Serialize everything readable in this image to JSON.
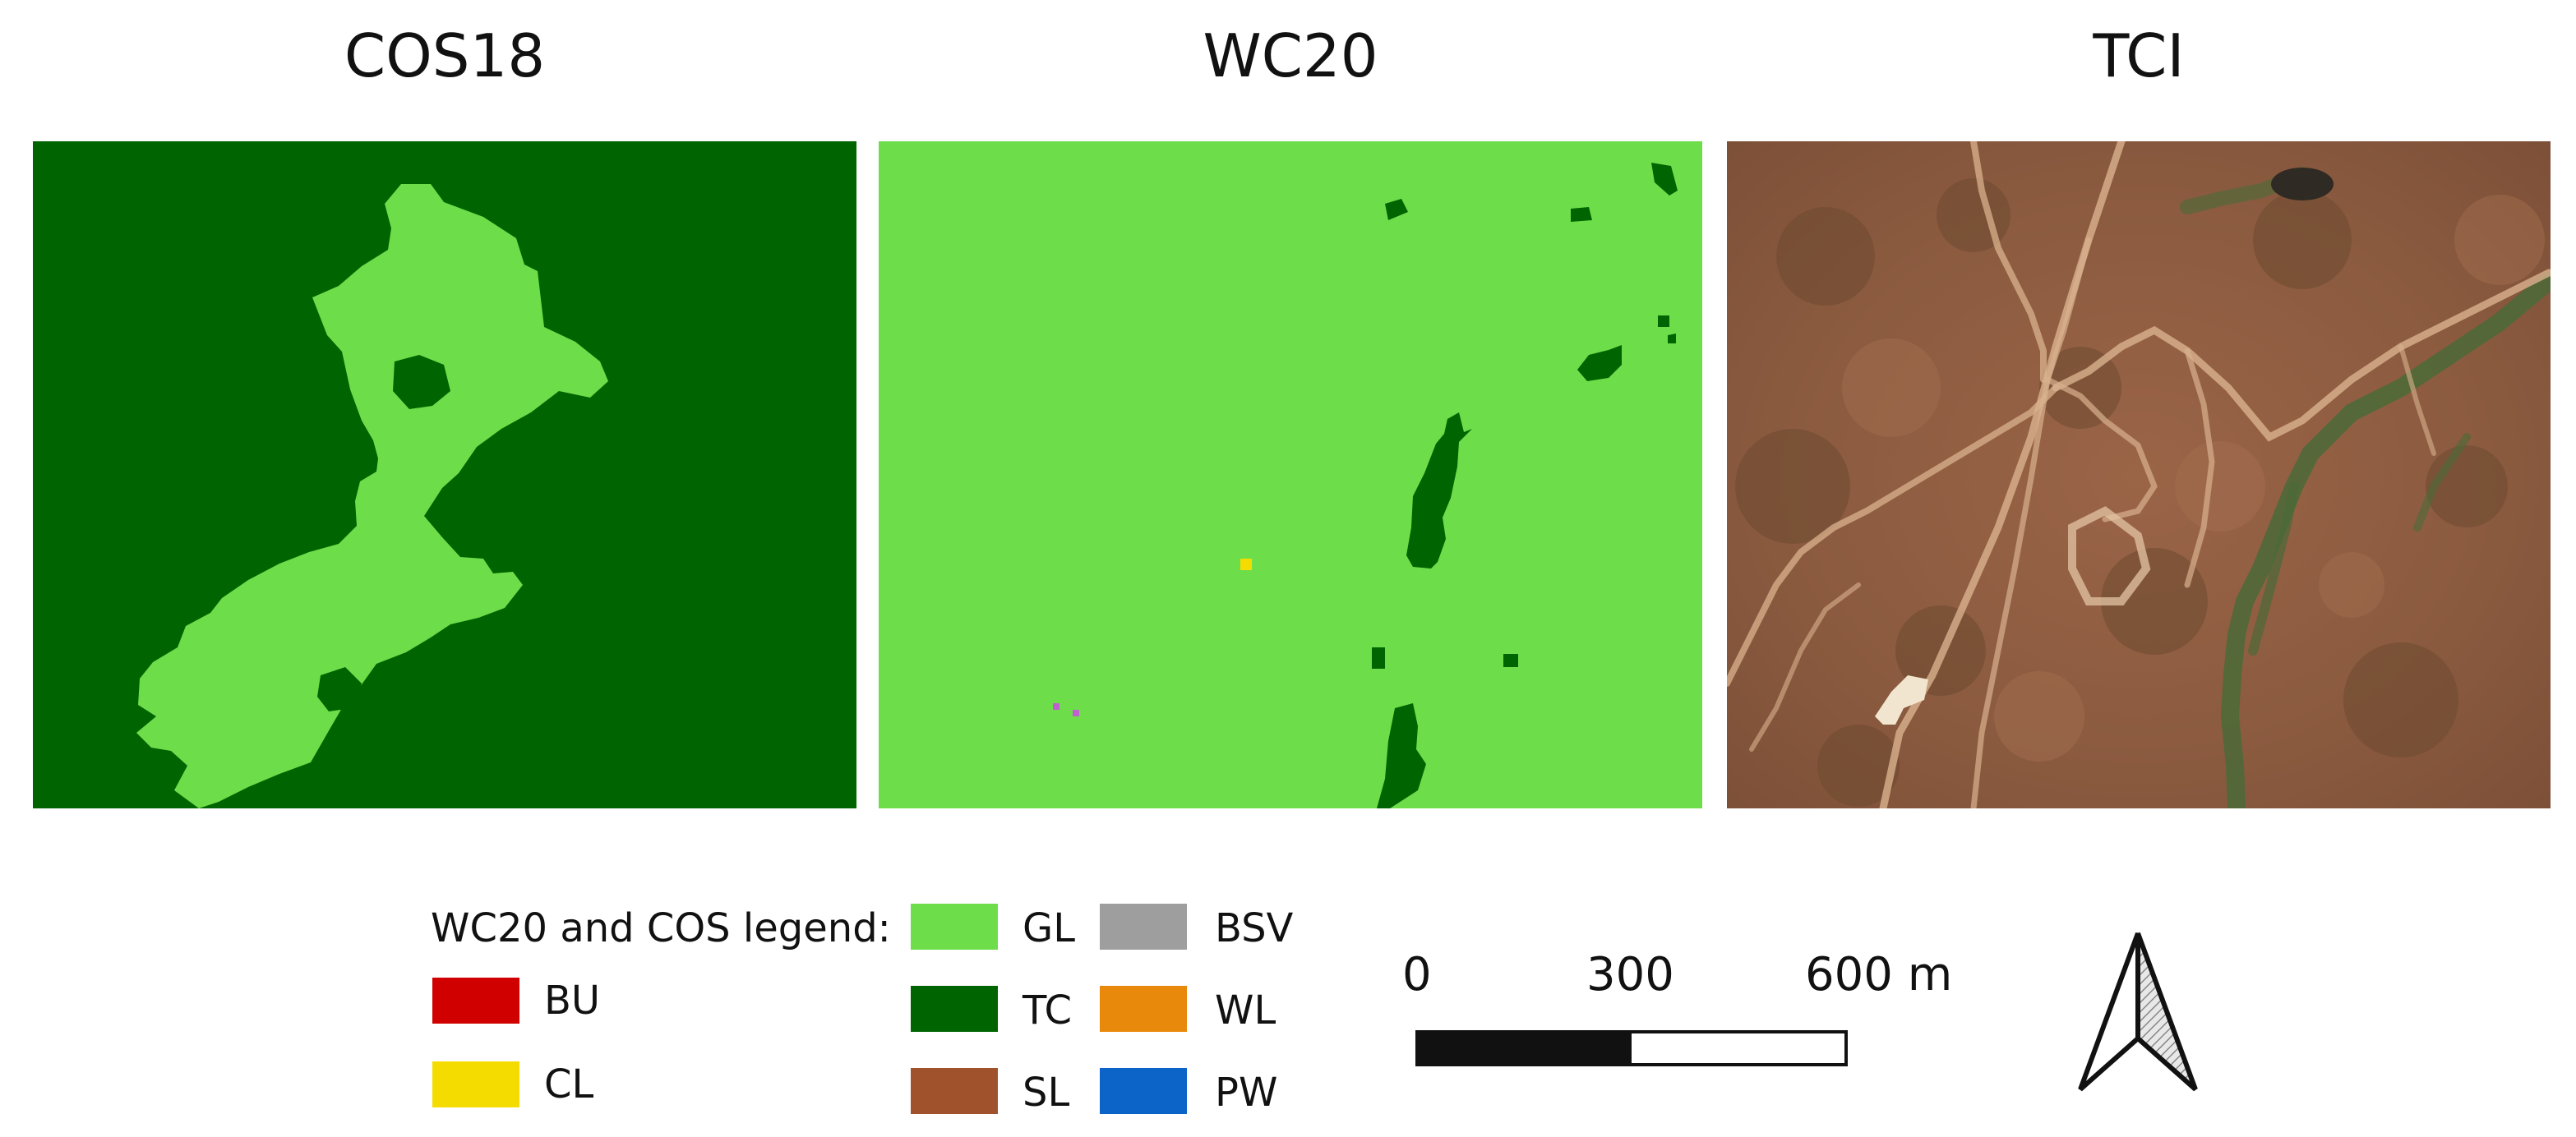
{
  "panels": [
    {
      "title": "COS18"
    },
    {
      "title": "WC20"
    },
    {
      "title": "TCI"
    }
  ],
  "legend": {
    "heading": "WC20 and COS legend:",
    "classes": [
      {
        "code": "BU",
        "color": "#d10000"
      },
      {
        "code": "CL",
        "color": "#f5dc00"
      },
      {
        "code": "GL",
        "color": "#6ddd4a"
      },
      {
        "code": "TC",
        "color": "#006400"
      },
      {
        "code": "SL",
        "color": "#a0522d"
      },
      {
        "code": "BSV",
        "color": "#9e9e9e"
      },
      {
        "code": "WL",
        "color": "#e8890c"
      },
      {
        "code": "PW",
        "color": "#0d64c8"
      }
    ]
  },
  "scale_bar": {
    "ticks": [
      "0",
      "300",
      "600 m"
    ]
  },
  "north_arrow": {
    "icon": "north-arrow-icon"
  }
}
